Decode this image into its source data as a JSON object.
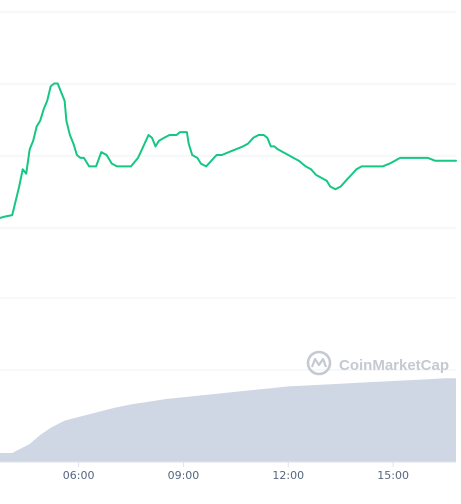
{
  "chart_data": {
    "type": "line",
    "grid": true,
    "legend": "none",
    "x_ticks": [
      "06:00",
      "09:00",
      "12:00",
      "15:00"
    ],
    "x_tick_hours": [
      6,
      9,
      12,
      15
    ],
    "xlim_hours": [
      3.75,
      16.8
    ],
    "price_ylim": [
      0,
      100
    ],
    "volume_ylim": [
      0,
      100
    ],
    "series": [
      {
        "values_kind": "price",
        "color": "#16c784",
        "points": [
          [
            3.75,
            28
          ],
          [
            3.9,
            28.5
          ],
          [
            4.1,
            29
          ],
          [
            4.3,
            39
          ],
          [
            4.4,
            45
          ],
          [
            4.5,
            43.5
          ],
          [
            4.6,
            52
          ],
          [
            4.7,
            55
          ],
          [
            4.8,
            60
          ],
          [
            4.9,
            62
          ],
          [
            5.0,
            66
          ],
          [
            5.1,
            69
          ],
          [
            5.2,
            74
          ],
          [
            5.3,
            75
          ],
          [
            5.4,
            75
          ],
          [
            5.5,
            72
          ],
          [
            5.6,
            69
          ],
          [
            5.65,
            62
          ],
          [
            5.75,
            57
          ],
          [
            5.85,
            54
          ],
          [
            5.95,
            50
          ],
          [
            6.05,
            49
          ],
          [
            6.15,
            49
          ],
          [
            6.3,
            46
          ],
          [
            6.5,
            46
          ],
          [
            6.65,
            51
          ],
          [
            6.8,
            50
          ],
          [
            6.95,
            47
          ],
          [
            7.1,
            46
          ],
          [
            7.3,
            46
          ],
          [
            7.5,
            46
          ],
          [
            7.7,
            49
          ],
          [
            7.85,
            53
          ],
          [
            8.0,
            57
          ],
          [
            8.1,
            56
          ],
          [
            8.2,
            53
          ],
          [
            8.3,
            55
          ],
          [
            8.45,
            56
          ],
          [
            8.6,
            57
          ],
          [
            8.7,
            57
          ],
          [
            8.8,
            57
          ],
          [
            8.9,
            58
          ],
          [
            9.0,
            58
          ],
          [
            9.1,
            58
          ],
          [
            9.15,
            54
          ],
          [
            9.25,
            50
          ],
          [
            9.4,
            49
          ],
          [
            9.5,
            47
          ],
          [
            9.65,
            46
          ],
          [
            9.8,
            48
          ],
          [
            9.95,
            50
          ],
          [
            10.1,
            50
          ],
          [
            10.3,
            51
          ],
          [
            10.5,
            52
          ],
          [
            10.7,
            53
          ],
          [
            10.85,
            54
          ],
          [
            11.0,
            56
          ],
          [
            11.15,
            57
          ],
          [
            11.3,
            57
          ],
          [
            11.4,
            56
          ],
          [
            11.5,
            53
          ],
          [
            11.6,
            53
          ],
          [
            11.7,
            52
          ],
          [
            11.85,
            51
          ],
          [
            12.0,
            50
          ],
          [
            12.15,
            49
          ],
          [
            12.3,
            48
          ],
          [
            12.4,
            47
          ],
          [
            12.5,
            46
          ],
          [
            12.65,
            45
          ],
          [
            12.8,
            43
          ],
          [
            12.95,
            42
          ],
          [
            13.1,
            41
          ],
          [
            13.2,
            39
          ],
          [
            13.35,
            38
          ],
          [
            13.5,
            39
          ],
          [
            13.65,
            41
          ],
          [
            13.8,
            43
          ],
          [
            13.95,
            45
          ],
          [
            14.1,
            46
          ],
          [
            14.3,
            46
          ],
          [
            14.5,
            46
          ],
          [
            14.7,
            46
          ],
          [
            14.9,
            47
          ],
          [
            15.05,
            48
          ],
          [
            15.2,
            49
          ],
          [
            15.35,
            49
          ],
          [
            15.5,
            49
          ],
          [
            15.65,
            49
          ],
          [
            15.8,
            49
          ],
          [
            16.0,
            49
          ],
          [
            16.2,
            48
          ],
          [
            16.4,
            48
          ],
          [
            16.6,
            48
          ],
          [
            16.8,
            48
          ]
        ]
      },
      {
        "values_kind": "volume",
        "color": "#cfd6e4",
        "points": [
          [
            3.75,
            10
          ],
          [
            4.1,
            10
          ],
          [
            4.3,
            14
          ],
          [
            4.6,
            20
          ],
          [
            4.9,
            30
          ],
          [
            5.2,
            38
          ],
          [
            5.6,
            46
          ],
          [
            6.0,
            50
          ],
          [
            6.5,
            55
          ],
          [
            7.0,
            60
          ],
          [
            7.5,
            64
          ],
          [
            8.0,
            67
          ],
          [
            8.5,
            70
          ],
          [
            9.0,
            72
          ],
          [
            9.5,
            74
          ],
          [
            10.0,
            76
          ],
          [
            10.5,
            78
          ],
          [
            11.0,
            80
          ],
          [
            11.5,
            82
          ],
          [
            12.0,
            84
          ],
          [
            12.5,
            85
          ],
          [
            13.0,
            86
          ],
          [
            13.5,
            87
          ],
          [
            14.0,
            88
          ],
          [
            14.5,
            89
          ],
          [
            15.0,
            90
          ],
          [
            15.5,
            91
          ],
          [
            16.0,
            92
          ],
          [
            16.5,
            93
          ],
          [
            16.8,
            93
          ]
        ]
      }
    ]
  },
  "watermark": {
    "brand": "CoinMarketCap",
    "icon": "coinmarketcap-logo-icon"
  }
}
